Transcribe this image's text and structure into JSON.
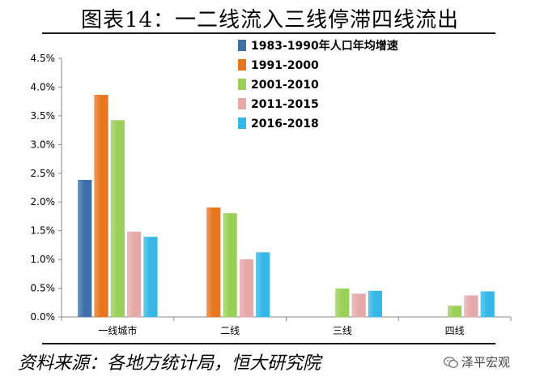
{
  "title": "图表14：一二线流入三线停滞四线流出",
  "source": "资料来源：各地方统计局，恒大研究院",
  "brand": "泽平宏观",
  "brand_icon": "wechat-icon",
  "chart_data": {
    "type": "bar",
    "categories": [
      "一线城市",
      "二线",
      "三线",
      "四线"
    ],
    "series": [
      {
        "name": "1983-1990年人口年均增速",
        "color": "#3f6fa8",
        "values": [
          2.38,
          null,
          null,
          null
        ]
      },
      {
        "name": "1991-2000",
        "color": "#e8761f",
        "values": [
          3.86,
          1.9,
          null,
          null
        ]
      },
      {
        "name": "2001-2010",
        "color": "#9bd058",
        "values": [
          3.42,
          1.8,
          0.49,
          0.19
        ]
      },
      {
        "name": "2011-2015",
        "color": "#e6a9a9",
        "values": [
          1.48,
          1.0,
          0.4,
          0.37
        ]
      },
      {
        "name": "2016-2018",
        "color": "#35b7e8",
        "values": [
          1.39,
          1.12,
          0.45,
          0.44
        ]
      }
    ],
    "ylim": [
      0,
      4.5
    ],
    "yticks": [
      "0.0%",
      "0.5%",
      "1.0%",
      "1.5%",
      "2.0%",
      "2.5%",
      "3.0%",
      "3.5%",
      "4.0%",
      "4.5%"
    ],
    "legend_position": "top-center",
    "grid": false
  }
}
